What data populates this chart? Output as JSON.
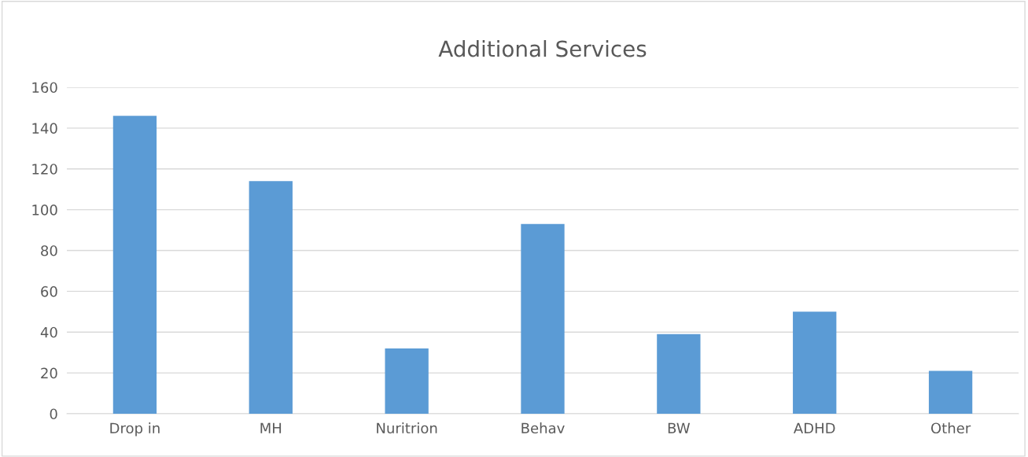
{
  "chart_data": {
    "type": "bar",
    "title": "Additional Services",
    "categories": [
      "Drop in",
      "MH",
      "Nuritrion",
      "Behav",
      "BW",
      "ADHD",
      "Other"
    ],
    "values": [
      146,
      114,
      32,
      93,
      39,
      50,
      21
    ],
    "color": "#5b9bd5",
    "ylim": [
      0,
      160
    ],
    "yticks": [
      0,
      20,
      40,
      60,
      80,
      100,
      120,
      140,
      160
    ],
    "grid": "y"
  }
}
